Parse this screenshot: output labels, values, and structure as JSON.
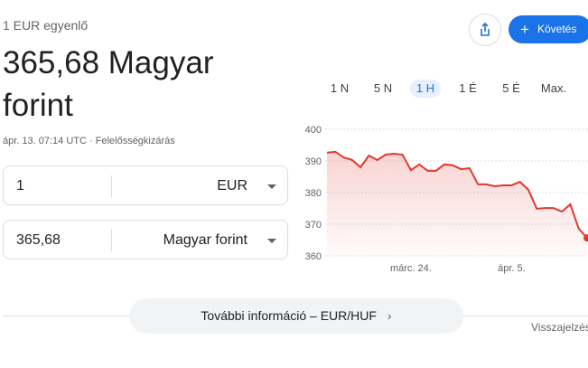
{
  "header": {
    "subtitle": "1 EUR egyenlő",
    "result": "365,68 Magyar forint",
    "timestamp": "ápr. 13. 07:14 UTC",
    "disclaimer": "Felelősségkizárás"
  },
  "buttons": {
    "follow": "Követés"
  },
  "converter": {
    "from_amount": "1",
    "from_currency": "EUR",
    "to_amount": "365,68",
    "to_currency": "Magyar forint"
  },
  "ranges": [
    "1 N",
    "5 N",
    "1 H",
    "1 É",
    "5 É",
    "Max."
  ],
  "selected_range": "1 H",
  "more_info": "További információ – EUR/HUF",
  "feedback": "Visszajelzés",
  "chart_data": {
    "type": "area",
    "color": "#e0382f",
    "categories": [
      null,
      null,
      null,
      null,
      null,
      null,
      null,
      null,
      null,
      null,
      "márc. 24.",
      null,
      null,
      null,
      null,
      null,
      null,
      null,
      null,
      null,
      null,
      null,
      "ápr. 5.",
      null,
      null,
      null,
      null,
      null,
      null,
      null,
      null,
      null
    ],
    "values": [
      392.6,
      392.9,
      391.1,
      390.3,
      388,
      391.7,
      390.3,
      392,
      392.3,
      392,
      387.1,
      388.9,
      386.9,
      386.9,
      388.9,
      388.6,
      387.4,
      387.7,
      382.6,
      382.6,
      382,
      382.3,
      382.3,
      383.4,
      380.9,
      374.9,
      375.1,
      375.1,
      374,
      376.3,
      368.6,
      365.68
    ],
    "ylim": [
      360,
      400
    ],
    "yticks": [
      360,
      370,
      380,
      390,
      400
    ],
    "grid": true
  }
}
